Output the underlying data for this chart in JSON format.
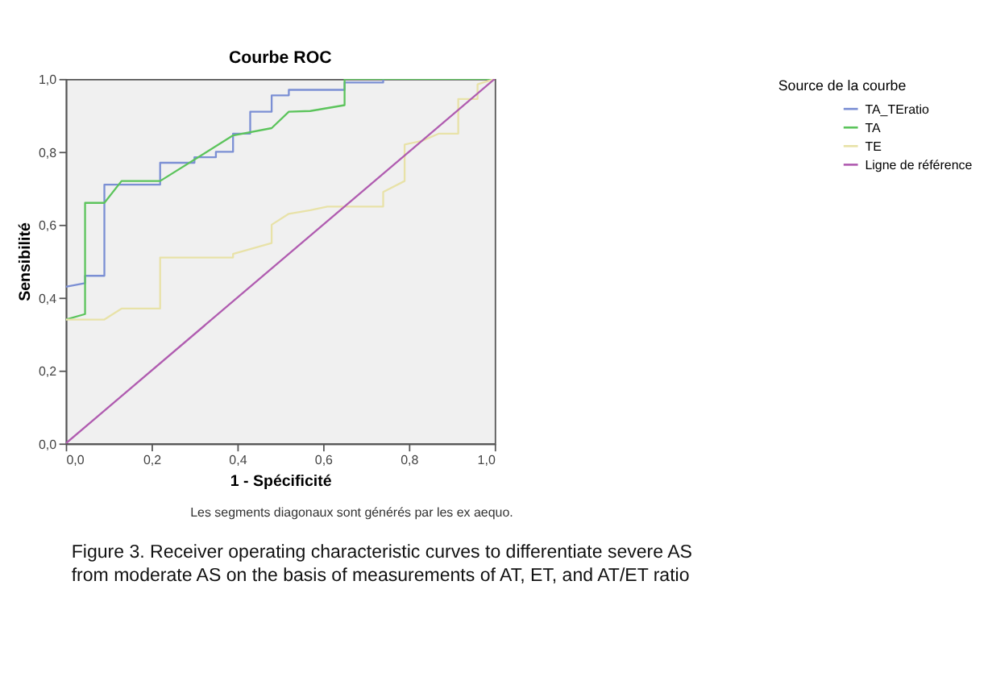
{
  "chart_data": {
    "type": "line",
    "title": "Courbe ROC",
    "xlabel": "1 - Spécificité",
    "ylabel": "Sensibilité",
    "legend_title": "Source de la courbe",
    "legend": "top right",
    "grid": false,
    "marker": "none",
    "line_style": "solid",
    "xlim": [
      0,
      1
    ],
    "ylim": [
      0,
      1
    ],
    "xticks": [
      {
        "value": 0,
        "label": "0,0"
      },
      {
        "value": 0.2,
        "label": "0,2"
      },
      {
        "value": 0.4,
        "label": "0,4"
      },
      {
        "value": 0.6,
        "label": "0,6"
      },
      {
        "value": 0.8,
        "label": "0,8"
      },
      {
        "value": 1,
        "label": "1,0"
      }
    ],
    "yticks": [
      {
        "value": 0,
        "label": "0,0"
      },
      {
        "value": 0.2,
        "label": "0,2"
      },
      {
        "value": 0.4,
        "label": "0,4"
      },
      {
        "value": 0.6,
        "label": "0,6"
      },
      {
        "value": 0.8,
        "label": "0,8"
      },
      {
        "value": 1,
        "label": "1,0"
      }
    ],
    "series": [
      {
        "name": "TA_TEratio",
        "color": "#7b8fd4",
        "x": [
          0,
          0.045,
          0.045,
          0.09,
          0.09,
          0.22,
          0.22,
          0.3,
          0.3,
          0.35,
          0.35,
          0.39,
          0.39,
          0.43,
          0.43,
          0.48,
          0.48,
          0.52,
          0.52,
          0.65,
          0.65,
          0.74,
          0.74,
          1
        ],
        "values": [
          0.43,
          0.44,
          0.46,
          0.46,
          0.71,
          0.71,
          0.77,
          0.77,
          0.785,
          0.785,
          0.8,
          0.8,
          0.85,
          0.85,
          0.91,
          0.91,
          0.955,
          0.955,
          0.97,
          0.97,
          0.99,
          0.99,
          1,
          1
        ]
      },
      {
        "name": "TA",
        "color": "#5cc45c",
        "x": [
          0,
          0.045,
          0.045,
          0.09,
          0.13,
          0.22,
          0.39,
          0.48,
          0.52,
          0.57,
          0.65,
          0.65,
          1
        ],
        "values": [
          0.34,
          0.355,
          0.66,
          0.66,
          0.72,
          0.72,
          0.845,
          0.865,
          0.91,
          0.912,
          0.928,
          1,
          1
        ]
      },
      {
        "name": "TE",
        "color": "#e8e2a8",
        "x": [
          0,
          0.09,
          0.13,
          0.22,
          0.22,
          0.39,
          0.39,
          0.48,
          0.48,
          0.52,
          0.57,
          0.61,
          0.74,
          0.74,
          0.79,
          0.79,
          0.83,
          0.87,
          0.915,
          0.915,
          0.96,
          0.96,
          1
        ],
        "values": [
          0.34,
          0.34,
          0.37,
          0.37,
          0.51,
          0.51,
          0.52,
          0.55,
          0.6,
          0.63,
          0.64,
          0.65,
          0.65,
          0.69,
          0.72,
          0.82,
          0.83,
          0.85,
          0.85,
          0.945,
          0.945,
          0.985,
          1
        ]
      },
      {
        "name": "Ligne de référence",
        "color": "#b05cb0",
        "x": [
          0,
          1
        ],
        "values": [
          0,
          1
        ]
      }
    ],
    "annotations": [
      "Les segments diagonaux sont générés par les ex aequo.",
      "Figure 3. Receiver operating characteristic curves to differentiate severe AS from moderate AS on the basis of measurements of AT, ET, and AT/ET ratio"
    ]
  }
}
